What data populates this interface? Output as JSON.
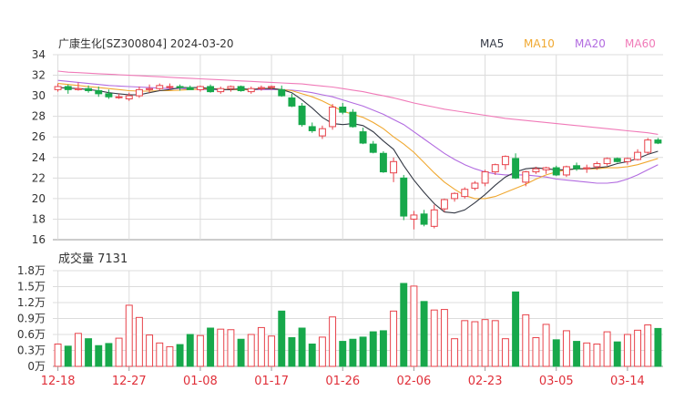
{
  "chart_data": {
    "type": "candlestick",
    "title": "广康生化[SZ300804] 2024-03-20",
    "colors": {
      "up": "#e8424a",
      "down": "#17a84b",
      "grid": "#dcdcdc",
      "axis": "#333333",
      "xtick": "#e0303a",
      "ma5": "#333844",
      "ma10": "#f0a830",
      "ma20": "#b26be0",
      "ma60": "#f07ab8"
    },
    "legend": [
      {
        "name": "MA5",
        "key": "ma5"
      },
      {
        "name": "MA10",
        "key": "ma10"
      },
      {
        "name": "MA20",
        "key": "ma20"
      },
      {
        "name": "MA60",
        "key": "ma60"
      }
    ],
    "price_axis": {
      "min": 16,
      "max": 34,
      "ticks": [
        16,
        18,
        20,
        22,
        24,
        26,
        28,
        30,
        32,
        34
      ]
    },
    "volume_title": "成交量 7131",
    "volume_axis": {
      "max": 18000,
      "ticks": [
        {
          "v": 0,
          "label": "0万"
        },
        {
          "v": 3000,
          "label": "0.3万"
        },
        {
          "v": 6000,
          "label": "0.6万"
        },
        {
          "v": 9000,
          "label": "0.9万"
        },
        {
          "v": 12000,
          "label": "1.2万"
        },
        {
          "v": 15000,
          "label": "1.5万"
        },
        {
          "v": 18000,
          "label": "1.8万"
        }
      ]
    },
    "x_ticks": [
      {
        "i": 0,
        "label": "12-18"
      },
      {
        "i": 7,
        "label": "12-27"
      },
      {
        "i": 14,
        "label": "01-08"
      },
      {
        "i": 21,
        "label": "01-17"
      },
      {
        "i": 28,
        "label": "01-26"
      },
      {
        "i": 35,
        "label": "02-06"
      },
      {
        "i": 42,
        "label": "02-23"
      },
      {
        "i": 49,
        "label": "03-05"
      },
      {
        "i": 56,
        "label": "03-14"
      }
    ],
    "ohlc": [
      [
        30.6,
        31.2,
        30.4,
        30.9
      ],
      [
        30.9,
        31.1,
        30.2,
        30.6
      ],
      [
        30.6,
        31.3,
        30.5,
        30.7
      ],
      [
        30.7,
        31.0,
        30.3,
        30.5
      ],
      [
        30.5,
        30.9,
        29.9,
        30.2
      ],
      [
        30.2,
        30.6,
        29.7,
        29.9
      ],
      [
        29.9,
        30.2,
        29.7,
        29.9
      ],
      [
        29.7,
        30.3,
        29.5,
        30.0
      ],
      [
        30.0,
        30.9,
        29.8,
        30.6
      ],
      [
        30.6,
        31.1,
        30.3,
        30.7
      ],
      [
        30.7,
        31.2,
        30.5,
        31.0
      ],
      [
        30.9,
        31.2,
        30.6,
        30.9
      ],
      [
        30.9,
        31.1,
        30.5,
        30.8
      ],
      [
        30.8,
        31.0,
        30.6,
        30.6
      ],
      [
        30.6,
        31.0,
        30.4,
        30.9
      ],
      [
        30.9,
        31.1,
        30.3,
        30.4
      ],
      [
        30.4,
        30.9,
        30.2,
        30.7
      ],
      [
        30.7,
        31.0,
        30.4,
        30.9
      ],
      [
        30.9,
        31.0,
        30.4,
        30.5
      ],
      [
        30.4,
        30.9,
        30.2,
        30.7
      ],
      [
        30.7,
        31.0,
        30.5,
        30.8
      ],
      [
        30.8,
        31.0,
        30.6,
        30.9
      ],
      [
        30.6,
        31.0,
        29.9,
        30.0
      ],
      [
        29.8,
        30.2,
        28.9,
        29.0
      ],
      [
        29.0,
        29.3,
        27.0,
        27.2
      ],
      [
        27.0,
        27.4,
        26.4,
        26.6
      ],
      [
        26.1,
        27.1,
        25.8,
        26.8
      ],
      [
        27.0,
        29.2,
        26.7,
        28.9
      ],
      [
        28.9,
        29.3,
        28.2,
        28.4
      ],
      [
        28.4,
        28.7,
        26.9,
        27.0
      ],
      [
        26.5,
        26.9,
        25.3,
        25.4
      ],
      [
        25.3,
        25.6,
        24.4,
        24.5
      ],
      [
        24.4,
        24.6,
        22.5,
        22.6
      ],
      [
        22.5,
        24.0,
        21.6,
        23.6
      ],
      [
        22.0,
        22.3,
        17.9,
        18.3
      ],
      [
        18.0,
        18.8,
        17.0,
        18.4
      ],
      [
        18.5,
        18.9,
        17.3,
        17.5
      ],
      [
        17.3,
        19.4,
        17.1,
        18.9
      ],
      [
        19.0,
        20.0,
        18.7,
        19.9
      ],
      [
        20.0,
        20.6,
        19.7,
        20.5
      ],
      [
        20.2,
        21.1,
        20.0,
        20.9
      ],
      [
        21.0,
        21.7,
        20.8,
        21.5
      ],
      [
        21.5,
        22.8,
        21.2,
        22.6
      ],
      [
        22.6,
        23.4,
        22.3,
        23.3
      ],
      [
        23.3,
        24.2,
        22.8,
        24.1
      ],
      [
        23.9,
        24.4,
        21.9,
        22.0
      ],
      [
        21.6,
        22.7,
        21.2,
        22.6
      ],
      [
        22.6,
        23.1,
        22.4,
        22.9
      ],
      [
        22.8,
        23.1,
        22.4,
        23.0
      ],
      [
        23.0,
        23.2,
        22.2,
        22.3
      ],
      [
        22.3,
        23.2,
        22.1,
        23.1
      ],
      [
        23.2,
        23.5,
        22.7,
        22.9
      ],
      [
        22.9,
        23.3,
        22.5,
        23.0
      ],
      [
        23.1,
        23.6,
        22.8,
        23.4
      ],
      [
        23.4,
        24.0,
        23.2,
        23.9
      ],
      [
        23.9,
        24.0,
        23.5,
        23.6
      ],
      [
        23.6,
        24.0,
        23.3,
        23.9
      ],
      [
        23.8,
        24.8,
        23.7,
        24.5
      ],
      [
        24.5,
        25.9,
        24.3,
        25.7
      ],
      [
        25.7,
        25.9,
        25.3,
        25.4
      ]
    ],
    "volume": [
      4200,
      3800,
      6200,
      5200,
      3900,
      4300,
      5300,
      11500,
      9200,
      5900,
      4400,
      3700,
      4100,
      6000,
      5800,
      7200,
      7000,
      6900,
      5100,
      6000,
      7300,
      5700,
      10400,
      5400,
      7200,
      4200,
      5500,
      9300,
      4700,
      5100,
      5500,
      6500,
      6700,
      10400,
      15600,
      15100,
      12200,
      10600,
      10700,
      5200,
      8600,
      8400,
      8800,
      8600,
      5200,
      14000,
      9700,
      5400,
      7900,
      5000,
      6700,
      4700,
      4400,
      4200,
      6500,
      4600,
      6000,
      6800,
      7800,
      7131
    ],
    "ma": {
      "ma5": [
        30.8,
        30.75,
        30.7,
        30.6,
        30.5,
        30.3,
        30.2,
        30.1,
        30.1,
        30.3,
        30.5,
        30.6,
        30.8,
        30.8,
        30.8,
        30.7,
        30.6,
        30.6,
        30.7,
        30.6,
        30.7,
        30.7,
        30.6,
        30.3,
        29.6,
        28.8,
        27.9,
        27.3,
        27.2,
        27.3,
        27.1,
        26.5,
        25.6,
        24.8,
        23.2,
        21.8,
        20.6,
        19.5,
        18.7,
        18.6,
        18.9,
        19.6,
        20.4,
        21.3,
        22.1,
        22.6,
        22.9,
        23.0,
        22.9,
        22.8,
        22.8,
        22.9,
        22.9,
        23.0,
        23.1,
        23.4,
        23.6,
        23.9,
        24.3,
        24.6
      ],
      "ma10": [
        31.2,
        31.1,
        31.0,
        30.9,
        30.8,
        30.7,
        30.6,
        30.5,
        30.45,
        30.45,
        30.5,
        30.5,
        30.55,
        30.6,
        30.65,
        30.7,
        30.65,
        30.6,
        30.6,
        30.6,
        30.7,
        30.7,
        30.6,
        30.5,
        30.2,
        29.9,
        29.5,
        29.0,
        28.5,
        28.2,
        27.9,
        27.4,
        26.8,
        26.0,
        25.3,
        24.5,
        23.5,
        22.5,
        21.6,
        20.9,
        20.3,
        20.0,
        20.0,
        20.2,
        20.6,
        21.0,
        21.4,
        21.9,
        22.3,
        22.6,
        22.8,
        22.9,
        22.9,
        22.9,
        23.0,
        23.0,
        23.1,
        23.3,
        23.6,
        23.9
      ],
      "ma20": [
        31.5,
        31.4,
        31.3,
        31.2,
        31.1,
        31.0,
        30.95,
        30.9,
        30.85,
        30.8,
        30.75,
        30.7,
        30.7,
        30.65,
        30.6,
        30.6,
        30.6,
        30.6,
        30.6,
        30.6,
        30.6,
        30.6,
        30.6,
        30.55,
        30.45,
        30.3,
        30.1,
        29.9,
        29.6,
        29.3,
        29.0,
        28.6,
        28.2,
        27.7,
        27.2,
        26.5,
        25.8,
        25.1,
        24.4,
        23.8,
        23.3,
        22.9,
        22.6,
        22.4,
        22.3,
        22.3,
        22.3,
        22.2,
        22.1,
        21.9,
        21.8,
        21.7,
        21.6,
        21.5,
        21.5,
        21.6,
        21.9,
        22.3,
        22.8,
        23.3
      ],
      "ma60": [
        32.4,
        32.3,
        32.25,
        32.2,
        32.15,
        32.1,
        32.05,
        32.0,
        31.95,
        31.9,
        31.85,
        31.8,
        31.75,
        31.7,
        31.65,
        31.6,
        31.55,
        31.5,
        31.45,
        31.4,
        31.35,
        31.3,
        31.25,
        31.2,
        31.15,
        31.05,
        30.95,
        30.85,
        30.7,
        30.55,
        30.4,
        30.2,
        30.0,
        29.8,
        29.55,
        29.3,
        29.1,
        28.9,
        28.7,
        28.55,
        28.4,
        28.25,
        28.1,
        27.95,
        27.8,
        27.7,
        27.6,
        27.5,
        27.4,
        27.3,
        27.2,
        27.1,
        27.0,
        26.9,
        26.8,
        26.7,
        26.6,
        26.5,
        26.4,
        26.25
      ]
    }
  }
}
